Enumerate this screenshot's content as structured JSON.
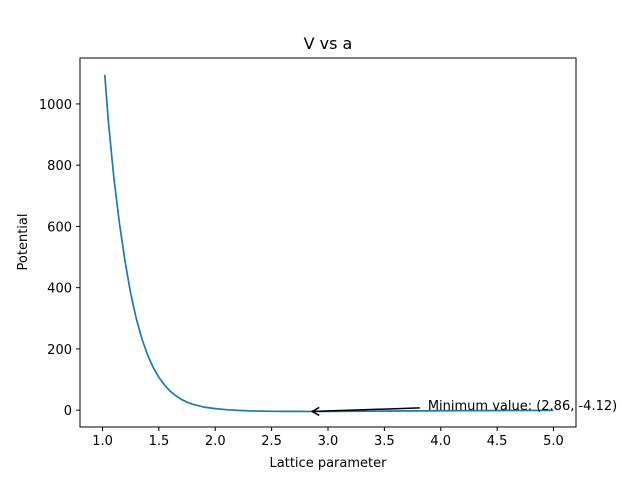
{
  "chart_data": {
    "type": "line",
    "title": "V vs a",
    "xlabel": "Lattice parameter",
    "ylabel": "Potential",
    "xlim": [
      0.8,
      5.2
    ],
    "ylim": [
      -55,
      1150
    ],
    "xticks": [
      1.0,
      1.5,
      2.0,
      2.5,
      3.0,
      3.5,
      4.0,
      4.5,
      5.0
    ],
    "xtick_labels": [
      "1.0",
      "1.5",
      "2.0",
      "2.5",
      "3.0",
      "3.5",
      "4.0",
      "4.5",
      "5.0"
    ],
    "yticks": [
      0,
      200,
      400,
      600,
      800,
      1000
    ],
    "ytick_labels": [
      "0",
      "200",
      "400",
      "600",
      "800",
      "1000"
    ],
    "grid": false,
    "series": [
      {
        "color": "#1f77b4",
        "x": [
          1.02,
          1.05,
          1.1,
          1.15,
          1.2,
          1.25,
          1.3,
          1.35,
          1.4,
          1.45,
          1.5,
          1.55,
          1.6,
          1.65,
          1.7,
          1.75,
          1.8,
          1.9,
          2.0,
          2.1,
          2.2,
          2.3,
          2.4,
          2.5,
          2.6,
          2.7,
          2.8,
          2.86,
          3.0,
          3.2,
          3.4,
          3.6,
          3.8,
          4.0,
          4.2,
          4.4,
          4.6,
          4.8,
          5.0
        ],
        "y": [
          1095,
          950,
          760,
          610,
          485,
          380,
          298,
          232,
          180,
          139,
          107,
          82,
          62,
          47,
          35,
          26,
          19,
          10,
          5,
          1.6,
          -0.6,
          -2.1,
          -3.1,
          -3.7,
          -4.0,
          -4.1,
          -4.12,
          -4.12,
          -4.0,
          -3.6,
          -3.2,
          -2.8,
          -2.4,
          -2.0,
          -1.7,
          -1.4,
          -1.2,
          -1.0,
          -0.8
        ]
      }
    ],
    "annotation": {
      "text": "Minimum value: (2.86, -4.12)",
      "point": [
        2.86,
        -4.12
      ],
      "text_pos": [
        3.85,
        4
      ],
      "arrow_color": "#000000"
    }
  }
}
